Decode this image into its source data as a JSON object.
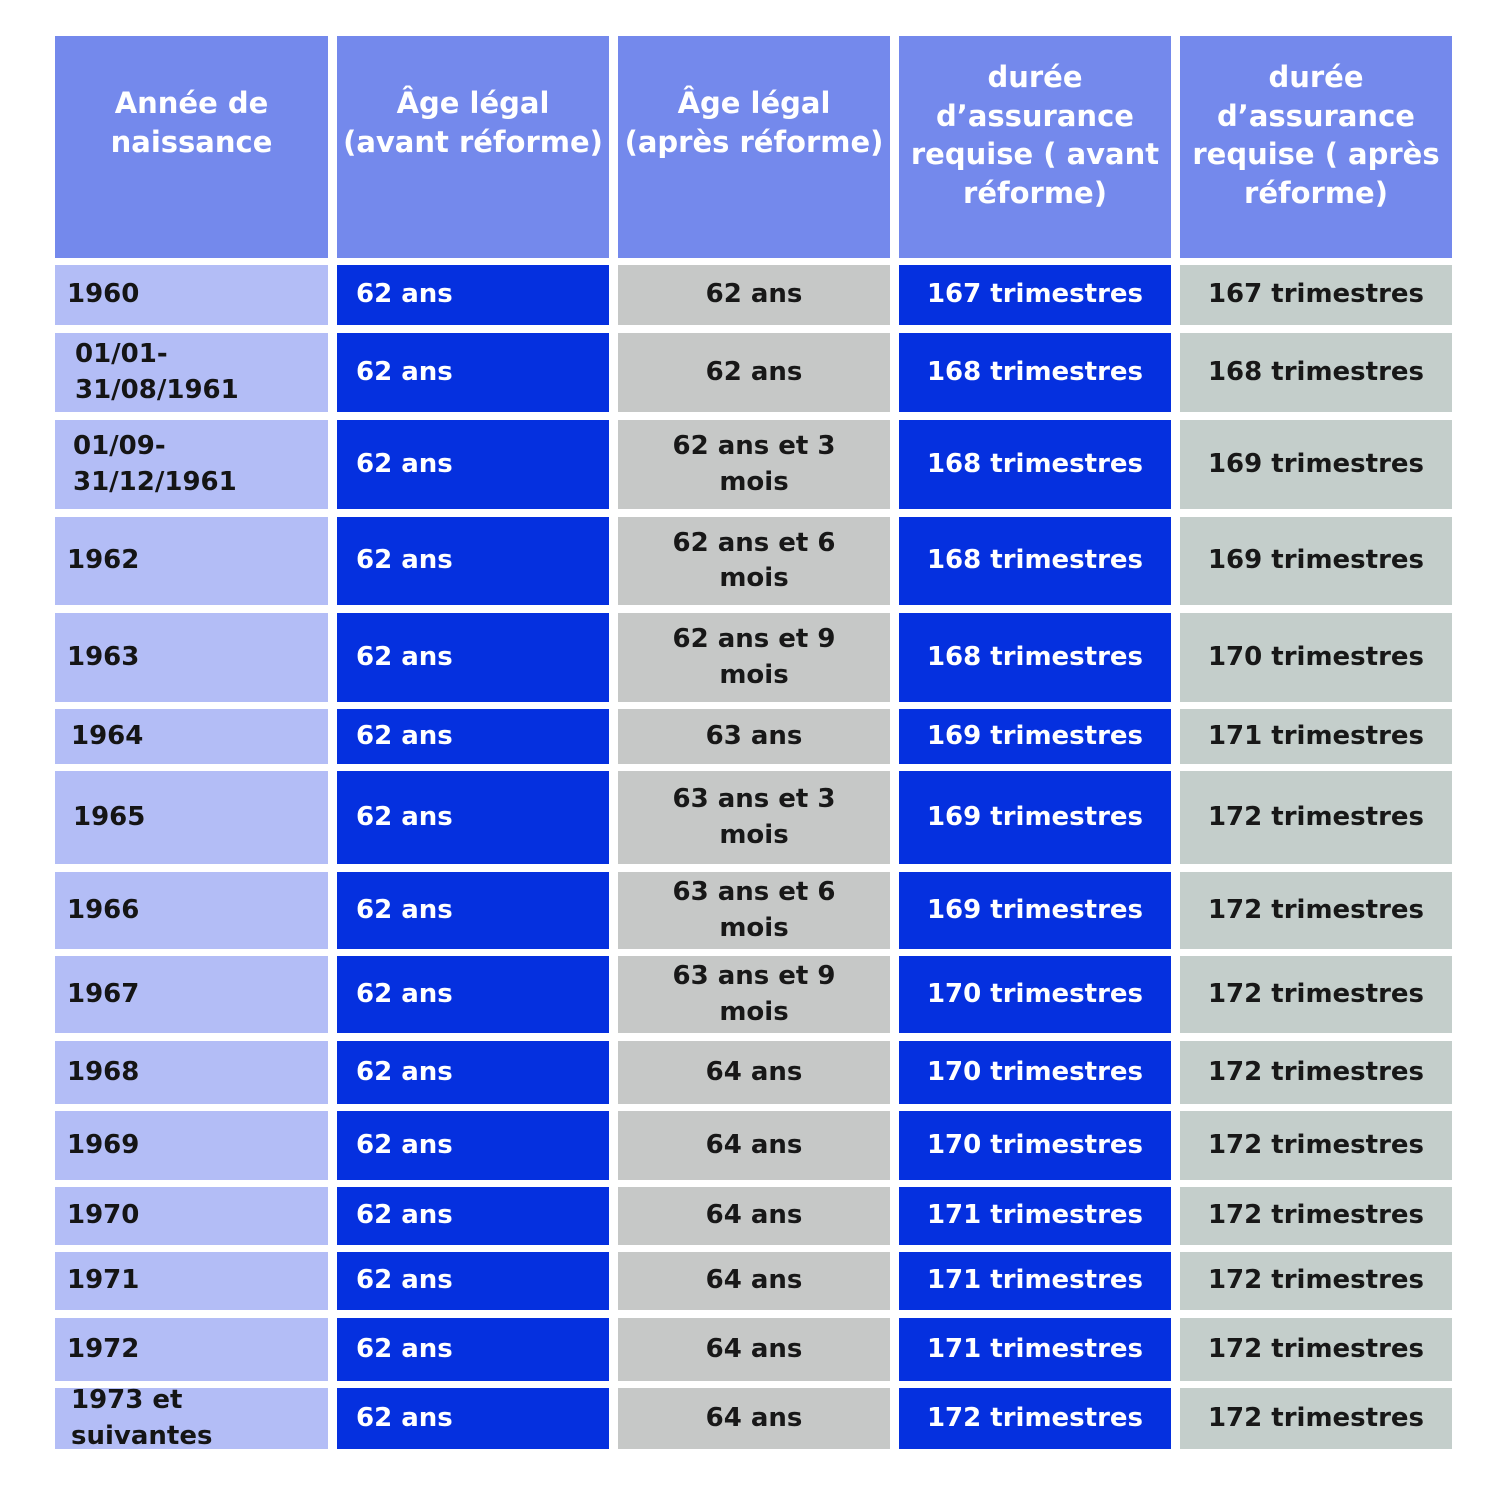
{
  "headers": [
    "Année de naissance",
    "Âge légal (avant réforme)",
    "Âge légal (après réforme)",
    "durée d’assurance requise ( avant réforme)",
    "durée d’assurance requise ( après réforme)"
  ],
  "rows": [
    [
      "1960",
      "62 ans",
      "62 ans",
      "167 trimestres",
      "167 trimestres"
    ],
    [
      "01/01-31/08/1961",
      "62 ans",
      "62 ans",
      "168 trimestres",
      "168 trimestres"
    ],
    [
      "01/09-31/12/1961",
      "62 ans",
      "62 ans et 3 mois",
      "168 trimestres",
      "169 trimestres"
    ],
    [
      "1962",
      "62 ans",
      "62 ans et 6 mois",
      "168 trimestres",
      "169 trimestres"
    ],
    [
      "1963",
      "62 ans",
      "62 ans et 9 mois",
      "168 trimestres",
      "170 trimestres"
    ],
    [
      "1964",
      "62 ans",
      "63 ans",
      "169 trimestres",
      "171 trimestres"
    ],
    [
      "1965",
      "62 ans",
      "63 ans et 3 mois",
      "169 trimestres",
      "172 trimestres"
    ],
    [
      "1966",
      "62 ans",
      "63 ans et 6 mois",
      "169 trimestres",
      "172 trimestres"
    ],
    [
      "1967",
      "62 ans",
      "63 ans et 9 mois",
      "170 trimestres",
      "172 trimestres"
    ],
    [
      "1968",
      "62 ans",
      "64 ans",
      "170 trimestres",
      "172 trimestres"
    ],
    [
      "1969",
      "62 ans",
      "64 ans",
      "170 trimestres",
      "172 trimestres"
    ],
    [
      "1970",
      "62 ans",
      "64 ans",
      "171 trimestres",
      "172 trimestres"
    ],
    [
      "1971",
      "62 ans",
      "64 ans",
      "171 trimestres",
      "172 trimestres"
    ],
    [
      "1972",
      "62 ans",
      "64 ans",
      "171 trimestres",
      "172 trimestres"
    ],
    [
      "1973 et suivantes",
      "62 ans",
      "64 ans",
      "172 trimestres",
      "172 trimestres"
    ]
  ]
}
